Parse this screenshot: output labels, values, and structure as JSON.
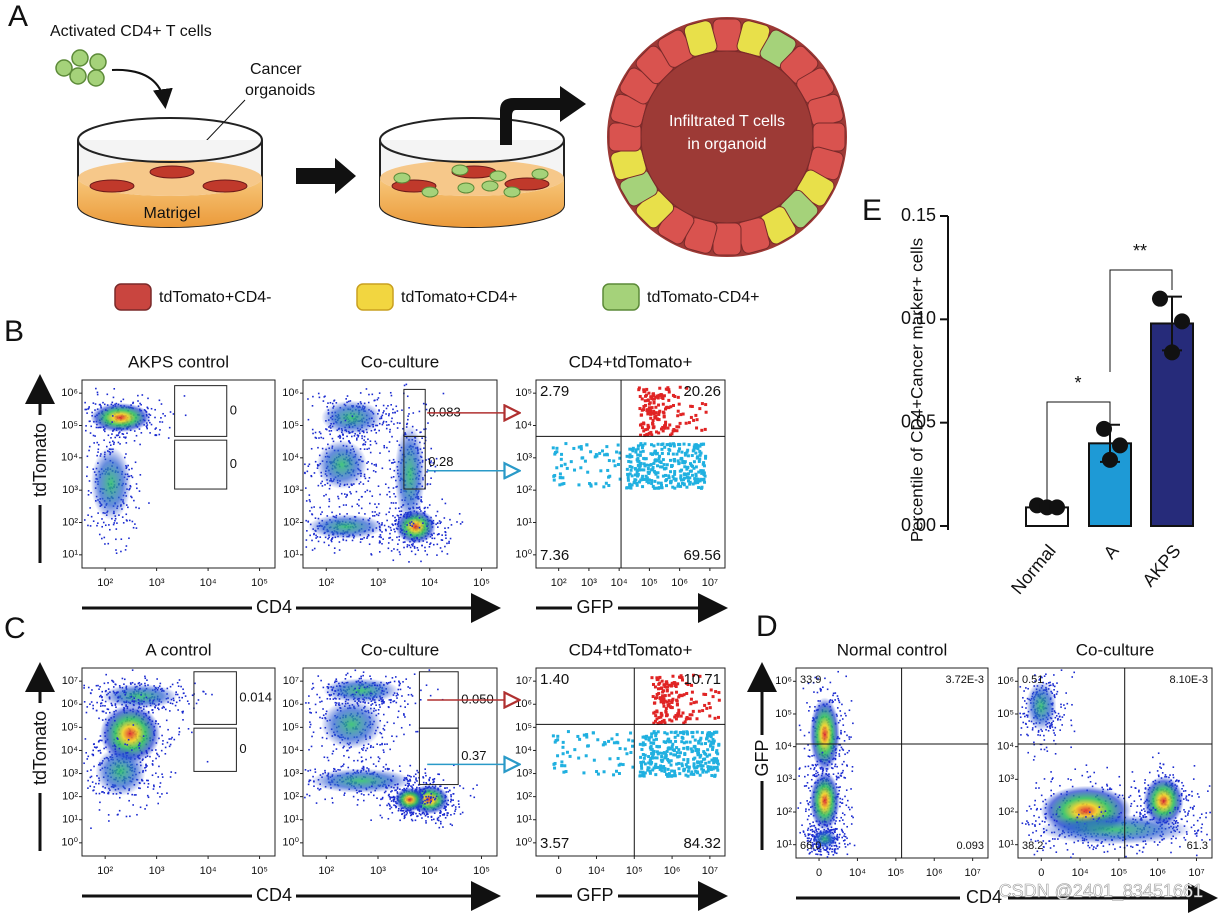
{
  "panel_labels": [
    "A",
    "B",
    "C",
    "D",
    "E"
  ],
  "panel_a": {
    "cells_label": "Activated CD4+ T cells",
    "organoids_label": [
      "Cancer",
      "organoids"
    ],
    "matrigel": "Matrigel",
    "organoid_text": [
      "Infiltrated T cells",
      "in organoid"
    ],
    "legend": [
      "tdTomato+CD4-",
      "tdTomato+CD4+",
      "tdTomato-CD4+"
    ]
  },
  "panel_b": {
    "y_label": "tdTomato",
    "x_labels": [
      "CD4",
      "GFP"
    ],
    "plots": [
      {
        "title": "AKPS control",
        "xticks": [
          "10²",
          "10³",
          "10⁴",
          "10⁵"
        ],
        "yticks": [
          "10¹",
          "10²",
          "10³",
          "10⁴",
          "10⁵",
          "10⁶"
        ],
        "gates": [
          "0",
          "0"
        ]
      },
      {
        "title": "Co-culture",
        "xticks": [
          "10²",
          "10³",
          "10⁴",
          "10⁵"
        ],
        "yticks": [
          "10¹",
          "10²",
          "10³",
          "10⁴",
          "10⁵",
          "10⁶"
        ],
        "gates": [
          "0.083",
          "0.28"
        ]
      },
      {
        "title": "CD4+tdTomato+",
        "xticks": [
          "10²",
          "10³",
          "10⁴",
          "10⁵",
          "10⁶",
          "10⁷"
        ],
        "yticks": [
          "10⁰",
          "10¹",
          "10²",
          "10³",
          "10⁴",
          "10⁵"
        ],
        "quadrants": [
          "2.79",
          "20.26",
          "7.36",
          "69.56"
        ]
      }
    ]
  },
  "panel_c": {
    "y_label": "tdTomato",
    "x_labels": [
      "CD4",
      "GFP"
    ],
    "plots": [
      {
        "title": "A control",
        "xticks": [
          "10²",
          "10³",
          "10⁴",
          "10⁵"
        ],
        "yticks": [
          "10⁰",
          "10¹",
          "10²",
          "10³",
          "10⁴",
          "10⁵",
          "10⁶",
          "10⁷"
        ],
        "gates": [
          "0.014",
          "0"
        ]
      },
      {
        "title": "Co-culture",
        "xticks": [
          "10²",
          "10³",
          "10⁴",
          "10⁵"
        ],
        "yticks": [
          "10⁰",
          "10¹",
          "10²",
          "10³",
          "10⁴",
          "10⁵",
          "10⁶",
          "10⁷"
        ],
        "gates": [
          "0.050",
          "0.37"
        ]
      },
      {
        "title": "CD4+tdTomato+",
        "xticks": [
          "0",
          "10⁴",
          "10⁵",
          "10⁶",
          "10⁷"
        ],
        "yticks": [
          "10⁰",
          "10¹",
          "10²",
          "10³",
          "10⁴",
          "10⁵",
          "10⁶",
          "10⁷"
        ],
        "quadrants": [
          "1.40",
          "10.71",
          "3.57",
          "84.32"
        ]
      }
    ]
  },
  "panel_d": {
    "y_label": "GFP",
    "x_label": "CD4",
    "plots": [
      {
        "title": "Normal control",
        "xticks": [
          "0",
          "10⁴",
          "10⁵",
          "10⁶",
          "10⁷"
        ],
        "yticks": [
          "10¹",
          "10²",
          "10³",
          "10⁴",
          "10⁵",
          "10⁶"
        ],
        "quadrants": [
          "33.9",
          "3.72E-3",
          "66.0",
          "0.093"
        ]
      },
      {
        "title": "Co-culture",
        "xticks": [
          "0",
          "10⁴",
          "10⁵",
          "10⁶",
          "10⁷"
        ],
        "yticks": [
          "10¹",
          "10²",
          "10³",
          "10⁴",
          "10⁵",
          "10⁶"
        ],
        "quadrants": [
          "0.51",
          "8.10E-3",
          "38.2",
          "61.3"
        ]
      }
    ]
  },
  "watermark": "CSDN @2401_83451661",
  "chart_data": {
    "type": "bar",
    "y_label": "Percentile of CD4+Cancer marker+ cells",
    "categories": [
      "Normal",
      "A",
      "AKPS"
    ],
    "values": [
      0.009,
      0.04,
      0.098
    ],
    "errors": [
      0.001,
      0.009,
      0.013
    ],
    "points": [
      [
        0.01,
        0.009,
        0.009
      ],
      [
        0.047,
        0.039,
        0.032
      ],
      [
        0.11,
        0.099,
        0.084
      ]
    ],
    "colors": [
      "#ffffff",
      "#1e9ad6",
      "#262b7a"
    ],
    "ylim": [
      0,
      0.15
    ],
    "yticks": [
      {
        "value": 0,
        "label": "0.00"
      },
      0.05,
      {
        "value": 0.1,
        "label": "0.10"
      },
      0.15
    ],
    "annotations": [
      "*",
      "**"
    ]
  }
}
